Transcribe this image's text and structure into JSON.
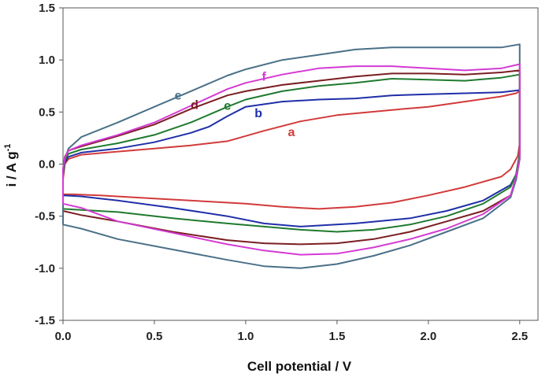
{
  "chart_data": {
    "type": "line",
    "title": "",
    "xlabel": "Cell potential  / V",
    "ylabel_main": "i / A g",
    "ylabel_sup": "-1",
    "xlim": [
      0,
      2.6
    ],
    "ylim": [
      -1.5,
      1.5
    ],
    "xticks": [
      "0.0",
      "0.5",
      "1.0",
      "1.5",
      "2.0",
      "2.5"
    ],
    "xtick_values": [
      0,
      0.5,
      1.0,
      1.5,
      2.0,
      2.5
    ],
    "yticks": [
      "1.5",
      "1.0",
      "0.5",
      "0.0",
      "-0.5",
      "-1.0",
      "-1.5"
    ],
    "ytick_values": [
      1.5,
      1.0,
      0.5,
      0.0,
      -0.5,
      -1.0,
      -1.5
    ],
    "grid": false,
    "legend": "none",
    "series": [
      {
        "name": "a",
        "color": "#d23a3a",
        "label_at": [
          1.25,
          0.27
        ],
        "points": [
          [
            0,
            -0.15
          ],
          [
            0.01,
            0.0
          ],
          [
            0.03,
            0.05
          ],
          [
            0.1,
            0.09
          ],
          [
            0.3,
            0.12
          ],
          [
            0.5,
            0.15
          ],
          [
            0.7,
            0.18
          ],
          [
            0.9,
            0.22
          ],
          [
            1.0,
            0.27
          ],
          [
            1.1,
            0.32
          ],
          [
            1.3,
            0.41
          ],
          [
            1.5,
            0.47
          ],
          [
            1.8,
            0.52
          ],
          [
            2.0,
            0.55
          ],
          [
            2.2,
            0.6
          ],
          [
            2.4,
            0.65
          ],
          [
            2.48,
            0.68
          ],
          [
            2.5,
            0.7
          ],
          [
            2.5,
            0.2
          ],
          [
            2.49,
            0.08
          ],
          [
            2.45,
            -0.05
          ],
          [
            2.4,
            -0.12
          ],
          [
            2.2,
            -0.22
          ],
          [
            2.0,
            -0.3
          ],
          [
            1.8,
            -0.37
          ],
          [
            1.6,
            -0.41
          ],
          [
            1.4,
            -0.43
          ],
          [
            1.2,
            -0.41
          ],
          [
            1.0,
            -0.38
          ],
          [
            0.8,
            -0.36
          ],
          [
            0.5,
            -0.33
          ],
          [
            0.2,
            -0.3
          ],
          [
            0.05,
            -0.29
          ],
          [
            0,
            -0.29
          ]
        ]
      },
      {
        "name": "b",
        "color": "#1f2fa8",
        "label_at": [
          1.07,
          0.45
        ],
        "points": [
          [
            0,
            -0.1
          ],
          [
            0.01,
            0.02
          ],
          [
            0.03,
            0.07
          ],
          [
            0.1,
            0.11
          ],
          [
            0.3,
            0.15
          ],
          [
            0.5,
            0.21
          ],
          [
            0.7,
            0.3
          ],
          [
            0.8,
            0.36
          ],
          [
            0.9,
            0.46
          ],
          [
            1.0,
            0.55
          ],
          [
            1.2,
            0.6
          ],
          [
            1.4,
            0.62
          ],
          [
            1.6,
            0.63
          ],
          [
            1.8,
            0.66
          ],
          [
            2.0,
            0.67
          ],
          [
            2.2,
            0.68
          ],
          [
            2.4,
            0.69
          ],
          [
            2.5,
            0.71
          ],
          [
            2.5,
            0.1
          ],
          [
            2.48,
            -0.1
          ],
          [
            2.45,
            -0.2
          ],
          [
            2.3,
            -0.35
          ],
          [
            2.1,
            -0.45
          ],
          [
            1.9,
            -0.52
          ],
          [
            1.6,
            -0.57
          ],
          [
            1.3,
            -0.6
          ],
          [
            1.1,
            -0.57
          ],
          [
            0.9,
            -0.5
          ],
          [
            0.6,
            -0.42
          ],
          [
            0.3,
            -0.35
          ],
          [
            0.1,
            -0.31
          ],
          [
            0,
            -0.3
          ]
        ]
      },
      {
        "name": "c",
        "color": "#1f7a2e",
        "label_at": [
          0.9,
          0.52
        ],
        "points": [
          [
            0,
            -0.08
          ],
          [
            0.01,
            0.04
          ],
          [
            0.03,
            0.1
          ],
          [
            0.1,
            0.14
          ],
          [
            0.3,
            0.2
          ],
          [
            0.5,
            0.28
          ],
          [
            0.7,
            0.4
          ],
          [
            0.9,
            0.55
          ],
          [
            1.0,
            0.62
          ],
          [
            1.2,
            0.7
          ],
          [
            1.4,
            0.75
          ],
          [
            1.6,
            0.78
          ],
          [
            1.8,
            0.82
          ],
          [
            2.0,
            0.81
          ],
          [
            2.2,
            0.8
          ],
          [
            2.4,
            0.83
          ],
          [
            2.5,
            0.86
          ],
          [
            2.5,
            0.1
          ],
          [
            2.48,
            -0.1
          ],
          [
            2.45,
            -0.22
          ],
          [
            2.3,
            -0.38
          ],
          [
            2.1,
            -0.5
          ],
          [
            1.9,
            -0.58
          ],
          [
            1.7,
            -0.63
          ],
          [
            1.5,
            -0.65
          ],
          [
            1.3,
            -0.63
          ],
          [
            1.1,
            -0.6
          ],
          [
            0.9,
            -0.57
          ],
          [
            0.6,
            -0.52
          ],
          [
            0.3,
            -0.46
          ],
          [
            0.1,
            -0.44
          ],
          [
            0,
            -0.43
          ]
        ]
      },
      {
        "name": "d",
        "color": "#7a1e22",
        "label_at": [
          0.72,
          0.53
        ],
        "points": [
          [
            0,
            -0.05
          ],
          [
            0.01,
            0.07
          ],
          [
            0.03,
            0.13
          ],
          [
            0.1,
            0.17
          ],
          [
            0.3,
            0.27
          ],
          [
            0.5,
            0.38
          ],
          [
            0.7,
            0.53
          ],
          [
            0.9,
            0.66
          ],
          [
            1.0,
            0.7
          ],
          [
            1.2,
            0.76
          ],
          [
            1.4,
            0.8
          ],
          [
            1.6,
            0.84
          ],
          [
            1.8,
            0.87
          ],
          [
            2.0,
            0.87
          ],
          [
            2.2,
            0.86
          ],
          [
            2.4,
            0.88
          ],
          [
            2.5,
            0.9
          ],
          [
            2.5,
            0.05
          ],
          [
            2.48,
            -0.15
          ],
          [
            2.45,
            -0.3
          ],
          [
            2.3,
            -0.45
          ],
          [
            2.1,
            -0.55
          ],
          [
            1.9,
            -0.65
          ],
          [
            1.7,
            -0.72
          ],
          [
            1.5,
            -0.76
          ],
          [
            1.3,
            -0.77
          ],
          [
            1.1,
            -0.76
          ],
          [
            0.9,
            -0.73
          ],
          [
            0.6,
            -0.65
          ],
          [
            0.3,
            -0.55
          ],
          [
            0.1,
            -0.49
          ],
          [
            0,
            -0.45
          ]
        ]
      },
      {
        "name": "e",
        "color": "#4a7088",
        "label_at": [
          0.63,
          0.62
        ],
        "points": [
          [
            0,
            -0.05
          ],
          [
            0.01,
            0.05
          ],
          [
            0.03,
            0.15
          ],
          [
            0.1,
            0.26
          ],
          [
            0.3,
            0.4
          ],
          [
            0.5,
            0.55
          ],
          [
            0.7,
            0.7
          ],
          [
            0.9,
            0.85
          ],
          [
            1.0,
            0.91
          ],
          [
            1.2,
            1.0
          ],
          [
            1.4,
            1.05
          ],
          [
            1.6,
            1.1
          ],
          [
            1.8,
            1.12
          ],
          [
            2.0,
            1.12
          ],
          [
            2.2,
            1.12
          ],
          [
            2.4,
            1.12
          ],
          [
            2.5,
            1.15
          ],
          [
            2.5,
            0.05
          ],
          [
            2.48,
            -0.15
          ],
          [
            2.45,
            -0.32
          ],
          [
            2.3,
            -0.52
          ],
          [
            2.1,
            -0.65
          ],
          [
            1.9,
            -0.78
          ],
          [
            1.7,
            -0.88
          ],
          [
            1.5,
            -0.96
          ],
          [
            1.3,
            -1.0
          ],
          [
            1.1,
            -0.98
          ],
          [
            0.9,
            -0.92
          ],
          [
            0.6,
            -0.82
          ],
          [
            0.3,
            -0.72
          ],
          [
            0.1,
            -0.62
          ],
          [
            0,
            -0.58
          ]
        ]
      },
      {
        "name": "f",
        "color": "#d43ad4",
        "label_at": [
          1.1,
          0.8
        ],
        "points": [
          [
            0,
            -0.05
          ],
          [
            0.01,
            0.06
          ],
          [
            0.03,
            0.13
          ],
          [
            0.1,
            0.18
          ],
          [
            0.3,
            0.28
          ],
          [
            0.5,
            0.4
          ],
          [
            0.7,
            0.56
          ],
          [
            0.9,
            0.72
          ],
          [
            1.0,
            0.78
          ],
          [
            1.2,
            0.86
          ],
          [
            1.4,
            0.92
          ],
          [
            1.6,
            0.94
          ],
          [
            1.8,
            0.94
          ],
          [
            2.0,
            0.92
          ],
          [
            2.2,
            0.9
          ],
          [
            2.4,
            0.92
          ],
          [
            2.5,
            0.96
          ],
          [
            2.5,
            0.05
          ],
          [
            2.48,
            -0.12
          ],
          [
            2.45,
            -0.3
          ],
          [
            2.3,
            -0.48
          ],
          [
            2.1,
            -0.62
          ],
          [
            1.9,
            -0.72
          ],
          [
            1.7,
            -0.8
          ],
          [
            1.5,
            -0.86
          ],
          [
            1.3,
            -0.87
          ],
          [
            1.1,
            -0.83
          ],
          [
            0.9,
            -0.77
          ],
          [
            0.6,
            -0.66
          ],
          [
            0.3,
            -0.55
          ],
          [
            0.1,
            -0.42
          ],
          [
            0,
            -0.38
          ]
        ]
      }
    ]
  }
}
